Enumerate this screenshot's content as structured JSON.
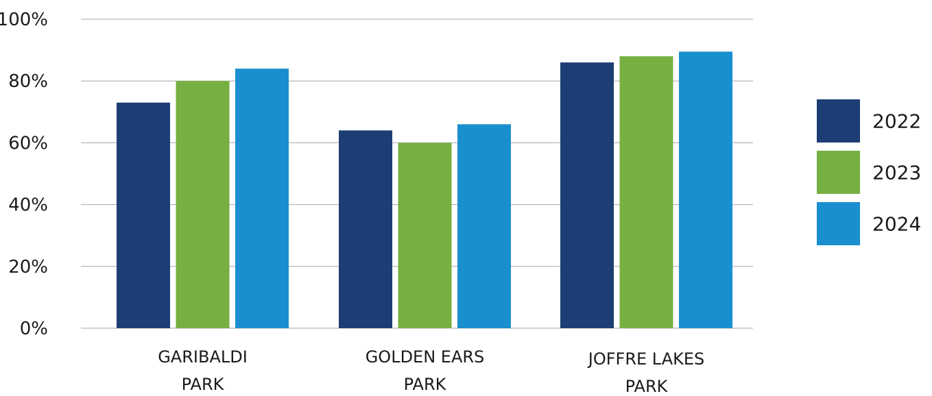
{
  "chart_data": {
    "type": "bar",
    "categories": [
      [
        "GARIBALDI",
        "PARK"
      ],
      [
        "GOLDEN EARS",
        "PARK"
      ],
      [
        "JOFFRE LAKES",
        "PARK"
      ]
    ],
    "series": [
      {
        "name": "2022",
        "color": "#1d3e74",
        "values": [
          73,
          64,
          86
        ]
      },
      {
        "name": "2023",
        "color": "#76b043",
        "values": [
          80,
          60,
          88
        ]
      },
      {
        "name": "2024",
        "color": "#1a8fcf",
        "values": [
          84,
          66,
          89.5
        ]
      }
    ],
    "ylim": [
      0,
      100
    ],
    "yticks": [
      0,
      20,
      40,
      60,
      80,
      100
    ],
    "ytick_labels": [
      "0%",
      "20%",
      "40%",
      "60%",
      "80%",
      "100%"
    ],
    "grid": true,
    "legend_position": "right"
  }
}
